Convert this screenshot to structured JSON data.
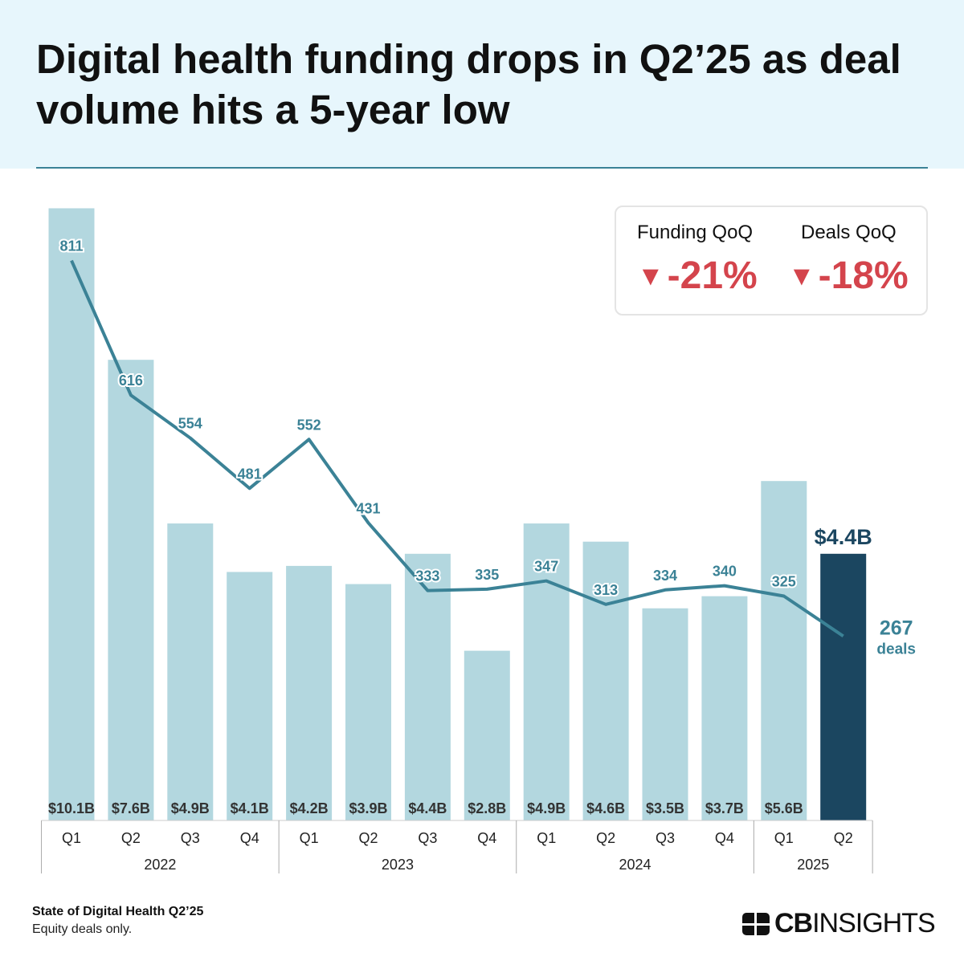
{
  "title": "Digital health funding drops in Q2’25 as deal volume hits a 5-year low",
  "kpis": [
    {
      "label": "Funding QoQ",
      "value": "-21%",
      "direction": "down"
    },
    {
      "label": "Deals QoQ",
      "value": "-18%",
      "direction": "down"
    }
  ],
  "footer": {
    "source": "State of Digital Health Q2’25",
    "note": "Equity deals only.",
    "logo": "CBINSIGHTS"
  },
  "colors": {
    "bar": "#b3d7df",
    "bar_highlight": "#1b4660",
    "line": "#3b8296",
    "down": "#d4444c"
  },
  "chart_data": {
    "type": "bar+line",
    "categories": [
      "Q1",
      "Q2",
      "Q3",
      "Q4",
      "Q1",
      "Q2",
      "Q3",
      "Q4",
      "Q1",
      "Q2",
      "Q3",
      "Q4",
      "Q1",
      "Q2"
    ],
    "years": [
      {
        "label": "2022",
        "count": 4
      },
      {
        "label": "2023",
        "count": 4
      },
      {
        "label": "2024",
        "count": 4
      },
      {
        "label": "2025",
        "count": 2
      }
    ],
    "series": [
      {
        "name": "Funding",
        "unit": "$B",
        "values": [
          10.1,
          7.6,
          4.9,
          4.1,
          4.2,
          3.9,
          4.4,
          2.8,
          4.9,
          4.6,
          3.5,
          3.7,
          5.6,
          4.4
        ],
        "labels": [
          "$10.1B",
          "$7.6B",
          "$4.9B",
          "$4.1B",
          "$4.2B",
          "$3.9B",
          "$4.4B",
          "$2.8B",
          "$4.9B",
          "$4.6B",
          "$3.5B",
          "$3.7B",
          "$5.6B",
          "$4.4B"
        ]
      },
      {
        "name": "deals",
        "values": [
          811,
          616,
          554,
          481,
          552,
          431,
          333,
          335,
          347,
          313,
          334,
          340,
          325,
          267
        ]
      }
    ],
    "highlight_index": 13,
    "last_deal_suffix": "deals"
  }
}
